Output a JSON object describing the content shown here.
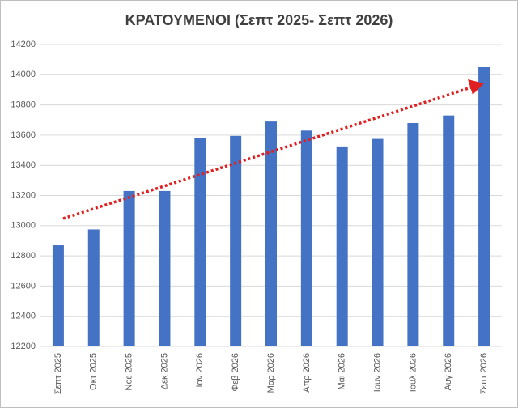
{
  "chart_data": {
    "type": "bar",
    "title": "ΚΡΑΤΟΥΜΕΝΟΙ (Σεπτ 2025- Σεπτ 2026)",
    "categories": [
      "Σεπτ 2025",
      "Οκτ 2025",
      "Νοε 2025",
      "Δεκ 2025",
      "Ιαν 2026",
      "Φεβ 2026",
      "Μαρ 2026",
      "Απρ 2026",
      "Μάι 2026",
      "Ιουν 2026",
      "Ιουλ 2026",
      "Αυγ 2026",
      "Σεπτ 2026"
    ],
    "values": [
      12870,
      12975,
      13230,
      13230,
      13580,
      13595,
      13690,
      13630,
      13525,
      13575,
      13680,
      13730,
      14050
    ],
    "color": "#4472c4",
    "ylim": [
      12200,
      14200
    ],
    "yticks": [
      12200,
      12400,
      12600,
      12800,
      13000,
      13200,
      13400,
      13600,
      13800,
      14000,
      14200
    ],
    "grid": true
  }
}
